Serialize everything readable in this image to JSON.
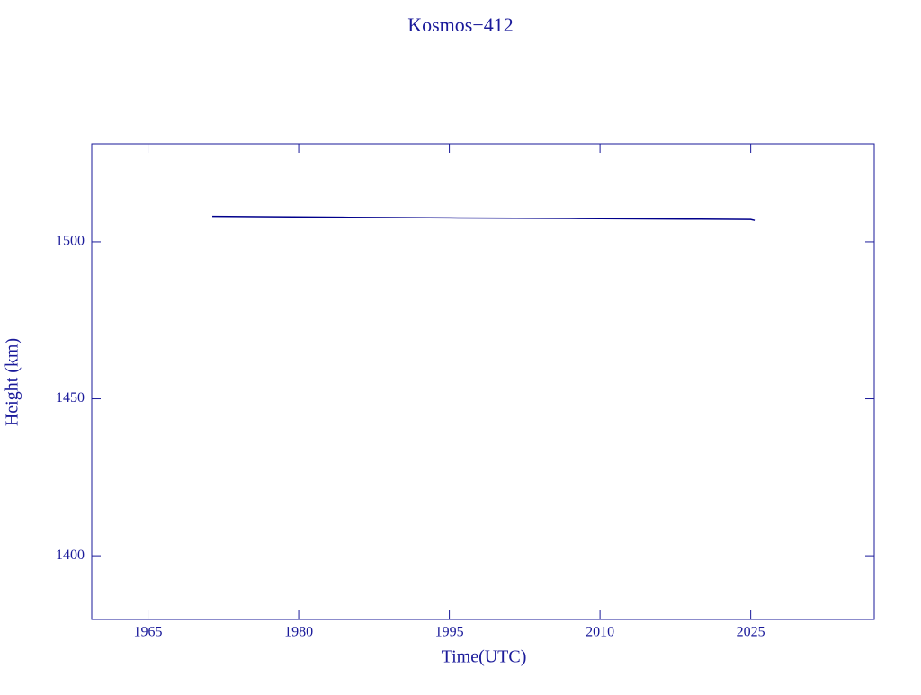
{
  "chart_data": {
    "type": "line",
    "title": "Kosmos−412",
    "x_label": "Time(UTC)",
    "y_label": "Height (km)",
    "x": [
      1971.4,
      1976.0,
      1985.0,
      1995.0,
      2008.0,
      2020.0,
      2025.0,
      2025.4
    ],
    "series": [
      {
        "name": "Kosmos-412",
        "color": "#00008b",
        "values": [
          1508.1,
          1508.0,
          1507.8,
          1507.6,
          1507.4,
          1507.2,
          1507.1,
          1506.8
        ]
      }
    ],
    "xlim": [
      1959.4,
      2037.3
    ],
    "xticks": [
      1965,
      1980,
      1995,
      2010,
      2025
    ],
    "ylim": [
      1379.7,
      1531.2
    ],
    "yticks": [
      1400,
      1450,
      1500
    ]
  }
}
